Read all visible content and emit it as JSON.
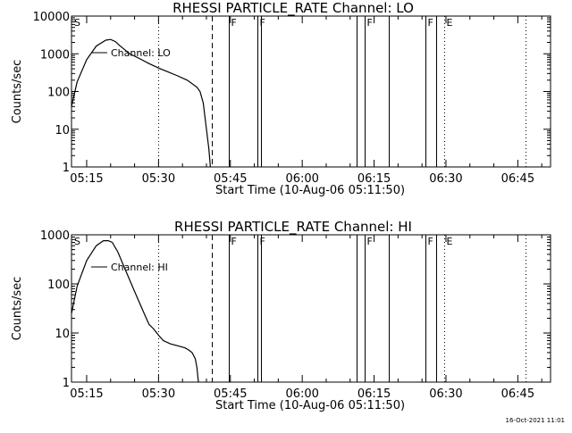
{
  "footer_timestamp": "16-Oct-2021 11:01",
  "chart_data": [
    {
      "type": "line",
      "title": "RHESSI PARTICLE_RATE Channel: LO",
      "xlabel": "Start Time (10-Aug-06 05:11:50)",
      "ylabel": "Counts/sec",
      "yscale": "log",
      "xlim": [
        "05:11:50",
        "06:51:50"
      ],
      "ylim": [
        1,
        10000
      ],
      "xticks": [
        "05:15",
        "05:30",
        "05:45",
        "06:00",
        "06:15",
        "06:30",
        "06:45"
      ],
      "yticks": [
        "1",
        "10",
        "100",
        "1000",
        "10000"
      ],
      "legend_position": "top-left",
      "series": [
        {
          "name": "Channel: LO",
          "x": [
            "05:11:50",
            "05:13:00",
            "05:15:00",
            "05:17:00",
            "05:19:00",
            "05:20:00",
            "05:21:00",
            "05:22:00",
            "05:24:00",
            "05:26:00",
            "05:28:00",
            "05:30:00",
            "05:32:00",
            "05:34:00",
            "05:36:00",
            "05:38:00",
            "05:38:40",
            "05:39:20",
            "05:40:00",
            "05:40:30",
            "05:40:50"
          ],
          "y": [
            40,
            180,
            700,
            1600,
            2300,
            2400,
            2100,
            1600,
            1000,
            750,
            550,
            420,
            330,
            260,
            200,
            130,
            100,
            50,
            10,
            3,
            1
          ]
        }
      ],
      "vertical_lines": [
        {
          "time": "05:30:00",
          "style": "dotted"
        },
        {
          "time": "05:41:10",
          "style": "dashed"
        },
        {
          "time": "05:44:40",
          "style": "solid",
          "label": "F"
        },
        {
          "time": "05:50:40",
          "style": "solid",
          "label": "F"
        },
        {
          "time": "05:51:20",
          "style": "solid"
        },
        {
          "time": "06:11:20",
          "style": "solid"
        },
        {
          "time": "06:13:00",
          "style": "solid",
          "label": "F"
        },
        {
          "time": "06:18:00",
          "style": "solid"
        },
        {
          "time": "06:25:40",
          "style": "solid",
          "label": "F"
        },
        {
          "time": "06:28:00",
          "style": "solid"
        },
        {
          "time": "06:29:40",
          "style": "dotted",
          "label": "E"
        },
        {
          "time": "06:46:40",
          "style": "dotted"
        }
      ],
      "start_marker": "S"
    },
    {
      "type": "line",
      "title": "RHESSI PARTICLE_RATE Channel: HI",
      "xlabel": "Start Time (10-Aug-06 05:11:50)",
      "ylabel": "Counts/sec",
      "yscale": "log",
      "xlim": [
        "05:11:50",
        "06:51:50"
      ],
      "ylim": [
        1,
        1000
      ],
      "xticks": [
        "05:15",
        "05:30",
        "05:45",
        "06:00",
        "06:15",
        "06:30",
        "06:45"
      ],
      "yticks": [
        "1",
        "10",
        "100",
        "1000"
      ],
      "legend_position": "top-left",
      "series": [
        {
          "name": "Channel: HI",
          "x": [
            "05:11:50",
            "05:13:00",
            "05:15:00",
            "05:17:00",
            "05:18:30",
            "05:19:30",
            "05:20:20",
            "05:21:30",
            "05:23:00",
            "05:25:00",
            "05:27:00",
            "05:28:00",
            "05:29:00",
            "05:30:00",
            "05:31:00",
            "05:32:30",
            "05:34:00",
            "05:35:30",
            "05:36:20",
            "05:37:00",
            "05:37:40",
            "05:38:00",
            "05:38:20"
          ],
          "y": [
            25,
            90,
            300,
            600,
            760,
            760,
            700,
            450,
            200,
            70,
            25,
            15,
            12,
            9,
            7,
            6,
            5.5,
            5,
            4.5,
            4,
            3,
            2,
            1
          ]
        }
      ],
      "vertical_lines": [
        {
          "time": "05:30:00",
          "style": "dotted"
        },
        {
          "time": "05:41:10",
          "style": "dashed"
        },
        {
          "time": "05:44:40",
          "style": "solid",
          "label": "F"
        },
        {
          "time": "05:50:40",
          "style": "solid",
          "label": "F"
        },
        {
          "time": "05:51:20",
          "style": "solid"
        },
        {
          "time": "06:11:20",
          "style": "solid"
        },
        {
          "time": "06:13:00",
          "style": "solid",
          "label": "F"
        },
        {
          "time": "06:18:00",
          "style": "solid"
        },
        {
          "time": "06:25:40",
          "style": "solid",
          "label": "F"
        },
        {
          "time": "06:28:00",
          "style": "solid"
        },
        {
          "time": "06:29:40",
          "style": "dotted",
          "label": "E"
        },
        {
          "time": "06:46:40",
          "style": "dotted"
        }
      ],
      "start_marker": "S"
    }
  ]
}
